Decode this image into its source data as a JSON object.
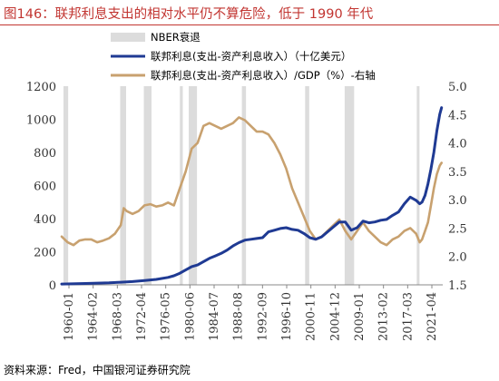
{
  "figure": {
    "title": "图146：联邦利息支出的相对水平仍不算危险，低于 1990 年代",
    "source": "资料来源：Fred，中国银河证券研究院"
  },
  "colors": {
    "title": "#c23531",
    "interest_usd": "#1f3a93",
    "interest_gdp": "#c8a16f",
    "recession": "#dcdcdc"
  },
  "chart_data": {
    "type": "line",
    "x_tick_labels": [
      "1960-01",
      "1964-02",
      "1968-03",
      "1972-04",
      "1976-05",
      "1980-06",
      "1984-07",
      "1988-08",
      "1992-09",
      "1996-10",
      "2000-11",
      "2004-12",
      "2009-01",
      "2013-02",
      "2017-03",
      "2021-04"
    ],
    "x_range": [
      1960.0,
      2024.5
    ],
    "y_left": {
      "range": [
        0,
        1200
      ],
      "ticks": [
        "0",
        "200",
        "400",
        "600",
        "800",
        "1000",
        "1200"
      ]
    },
    "y_right": {
      "range": [
        1.5,
        5.0
      ],
      "ticks": [
        "1.5",
        "2.0",
        "2.5",
        "3.0",
        "3.5",
        "4.0",
        "4.5",
        "5.0"
      ]
    },
    "legend": [
      {
        "key": "recession",
        "label": "NBER衰退"
      },
      {
        "key": "interest_usd",
        "label": "联邦利息(支出-资产利息收入）（十亿美元）"
      },
      {
        "key": "interest_gdp",
        "label": "联邦利息(支出-资产利息收入）/GDP（%）-右轴"
      }
    ],
    "recessions": [
      [
        1960.3,
        1961.1
      ],
      [
        1969.9,
        1970.9
      ],
      [
        1973.9,
        1975.2
      ],
      [
        1980.0,
        1980.5
      ],
      [
        1981.5,
        1982.9
      ],
      [
        1990.5,
        1991.2
      ],
      [
        2001.2,
        2001.9
      ],
      [
        2007.9,
        2009.5
      ],
      [
        2020.1,
        2020.4
      ]
    ],
    "series": [
      {
        "key": "interest_usd",
        "axis": "left",
        "points": [
          [
            1960.0,
            5
          ],
          [
            1964.0,
            8
          ],
          [
            1968.0,
            12
          ],
          [
            1970.0,
            16
          ],
          [
            1972.0,
            20
          ],
          [
            1974.0,
            26
          ],
          [
            1976.0,
            33
          ],
          [
            1978.0,
            45
          ],
          [
            1979.0,
            55
          ],
          [
            1980.0,
            70
          ],
          [
            1981.0,
            90
          ],
          [
            1982.0,
            110
          ],
          [
            1983.0,
            120
          ],
          [
            1984.0,
            140
          ],
          [
            1985.0,
            160
          ],
          [
            1986.0,
            175
          ],
          [
            1987.0,
            190
          ],
          [
            1988.0,
            210
          ],
          [
            1989.0,
            235
          ],
          [
            1990.0,
            255
          ],
          [
            1991.0,
            270
          ],
          [
            1992.0,
            275
          ],
          [
            1993.0,
            280
          ],
          [
            1994.0,
            285
          ],
          [
            1995.0,
            320
          ],
          [
            1996.0,
            330
          ],
          [
            1997.0,
            340
          ],
          [
            1998.0,
            345
          ],
          [
            1999.0,
            335
          ],
          [
            2000.0,
            330
          ],
          [
            2001.0,
            310
          ],
          [
            2002.0,
            285
          ],
          [
            2003.0,
            275
          ],
          [
            2004.0,
            290
          ],
          [
            2005.0,
            320
          ],
          [
            2006.0,
            350
          ],
          [
            2007.0,
            380
          ],
          [
            2008.0,
            380
          ],
          [
            2009.0,
            330
          ],
          [
            2010.0,
            345
          ],
          [
            2011.0,
            385
          ],
          [
            2012.0,
            375
          ],
          [
            2013.0,
            380
          ],
          [
            2014.0,
            390
          ],
          [
            2015.0,
            395
          ],
          [
            2016.0,
            420
          ],
          [
            2017.0,
            440
          ],
          [
            2018.0,
            490
          ],
          [
            2019.0,
            530
          ],
          [
            2020.0,
            510
          ],
          [
            2020.6,
            490
          ],
          [
            2021.0,
            500
          ],
          [
            2021.5,
            540
          ],
          [
            2022.0,
            610
          ],
          [
            2022.5,
            700
          ],
          [
            2023.0,
            800
          ],
          [
            2023.5,
            930
          ],
          [
            2024.0,
            1030
          ],
          [
            2024.3,
            1070
          ]
        ]
      },
      {
        "key": "interest_gdp",
        "axis": "right",
        "points": [
          [
            1960.0,
            2.35
          ],
          [
            1961.0,
            2.25
          ],
          [
            1962.0,
            2.2
          ],
          [
            1963.0,
            2.28
          ],
          [
            1964.0,
            2.3
          ],
          [
            1965.0,
            2.3
          ],
          [
            1966.0,
            2.25
          ],
          [
            1967.0,
            2.28
          ],
          [
            1968.0,
            2.32
          ],
          [
            1969.0,
            2.4
          ],
          [
            1970.0,
            2.55
          ],
          [
            1970.5,
            2.85
          ],
          [
            1971.0,
            2.8
          ],
          [
            1972.0,
            2.75
          ],
          [
            1973.0,
            2.8
          ],
          [
            1974.0,
            2.9
          ],
          [
            1975.0,
            2.92
          ],
          [
            1976.0,
            2.88
          ],
          [
            1977.0,
            2.9
          ],
          [
            1978.0,
            2.95
          ],
          [
            1979.0,
            2.9
          ],
          [
            1980.0,
            3.2
          ],
          [
            1981.0,
            3.5
          ],
          [
            1982.0,
            3.9
          ],
          [
            1983.0,
            4.0
          ],
          [
            1984.0,
            4.3
          ],
          [
            1985.0,
            4.35
          ],
          [
            1986.0,
            4.3
          ],
          [
            1987.0,
            4.25
          ],
          [
            1988.0,
            4.3
          ],
          [
            1989.0,
            4.35
          ],
          [
            1990.0,
            4.45
          ],
          [
            1991.0,
            4.4
          ],
          [
            1992.0,
            4.3
          ],
          [
            1993.0,
            4.2
          ],
          [
            1994.0,
            4.2
          ],
          [
            1995.0,
            4.15
          ],
          [
            1996.0,
            4.0
          ],
          [
            1997.0,
            3.8
          ],
          [
            1998.0,
            3.55
          ],
          [
            1999.0,
            3.2
          ],
          [
            2000.0,
            2.95
          ],
          [
            2001.0,
            2.7
          ],
          [
            2002.0,
            2.45
          ],
          [
            2003.0,
            2.3
          ],
          [
            2004.0,
            2.35
          ],
          [
            2005.0,
            2.45
          ],
          [
            2006.0,
            2.55
          ],
          [
            2007.0,
            2.65
          ],
          [
            2008.0,
            2.45
          ],
          [
            2009.0,
            2.3
          ],
          [
            2010.0,
            2.45
          ],
          [
            2011.0,
            2.6
          ],
          [
            2012.0,
            2.45
          ],
          [
            2013.0,
            2.35
          ],
          [
            2014.0,
            2.25
          ],
          [
            2015.0,
            2.2
          ],
          [
            2016.0,
            2.3
          ],
          [
            2017.0,
            2.35
          ],
          [
            2018.0,
            2.45
          ],
          [
            2019.0,
            2.5
          ],
          [
            2020.0,
            2.4
          ],
          [
            2020.6,
            2.25
          ],
          [
            2021.0,
            2.3
          ],
          [
            2021.5,
            2.45
          ],
          [
            2022.0,
            2.6
          ],
          [
            2022.5,
            2.9
          ],
          [
            2023.0,
            3.2
          ],
          [
            2023.5,
            3.45
          ],
          [
            2024.0,
            3.6
          ],
          [
            2024.3,
            3.65
          ]
        ]
      }
    ]
  }
}
